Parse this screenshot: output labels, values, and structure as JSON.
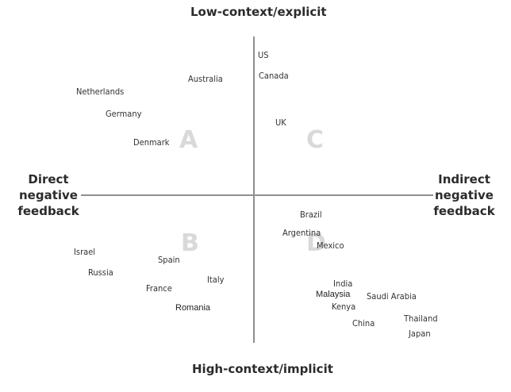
{
  "axes": {
    "top": "Low-context/explicit",
    "bottom": "High-context/implicit",
    "left": [
      "Direct",
      "negative",
      "feedback"
    ],
    "right": [
      "Indirect",
      "negative",
      "feedback"
    ]
  },
  "quadrants": {
    "a": "A",
    "b": "B",
    "c": "C",
    "d": "D"
  },
  "countries": {
    "us": "US",
    "canada": "Canada",
    "uk": "UK",
    "australia": "Australia",
    "netherlands": "Netherlands",
    "germany": "Germany",
    "denmark": "Denmark",
    "brazil": "Brazil",
    "argentina": "Argentina",
    "mexico": "Mexico",
    "israel": "Israel",
    "spain": "Spain",
    "russia": "Russia",
    "italy": "Italy",
    "france": "France",
    "romania": "Romania",
    "india": "India",
    "malaysia": "Malaysia",
    "saudi_arabia": "Saudi Arabia",
    "kenya": "Kenya",
    "thailand": "Thailand",
    "china": "China",
    "japan": "Japan"
  },
  "colors": {
    "axis": "#8f8f8f",
    "text": "#2b2b2b",
    "quadrant_letter": "#d9d9d9"
  }
}
